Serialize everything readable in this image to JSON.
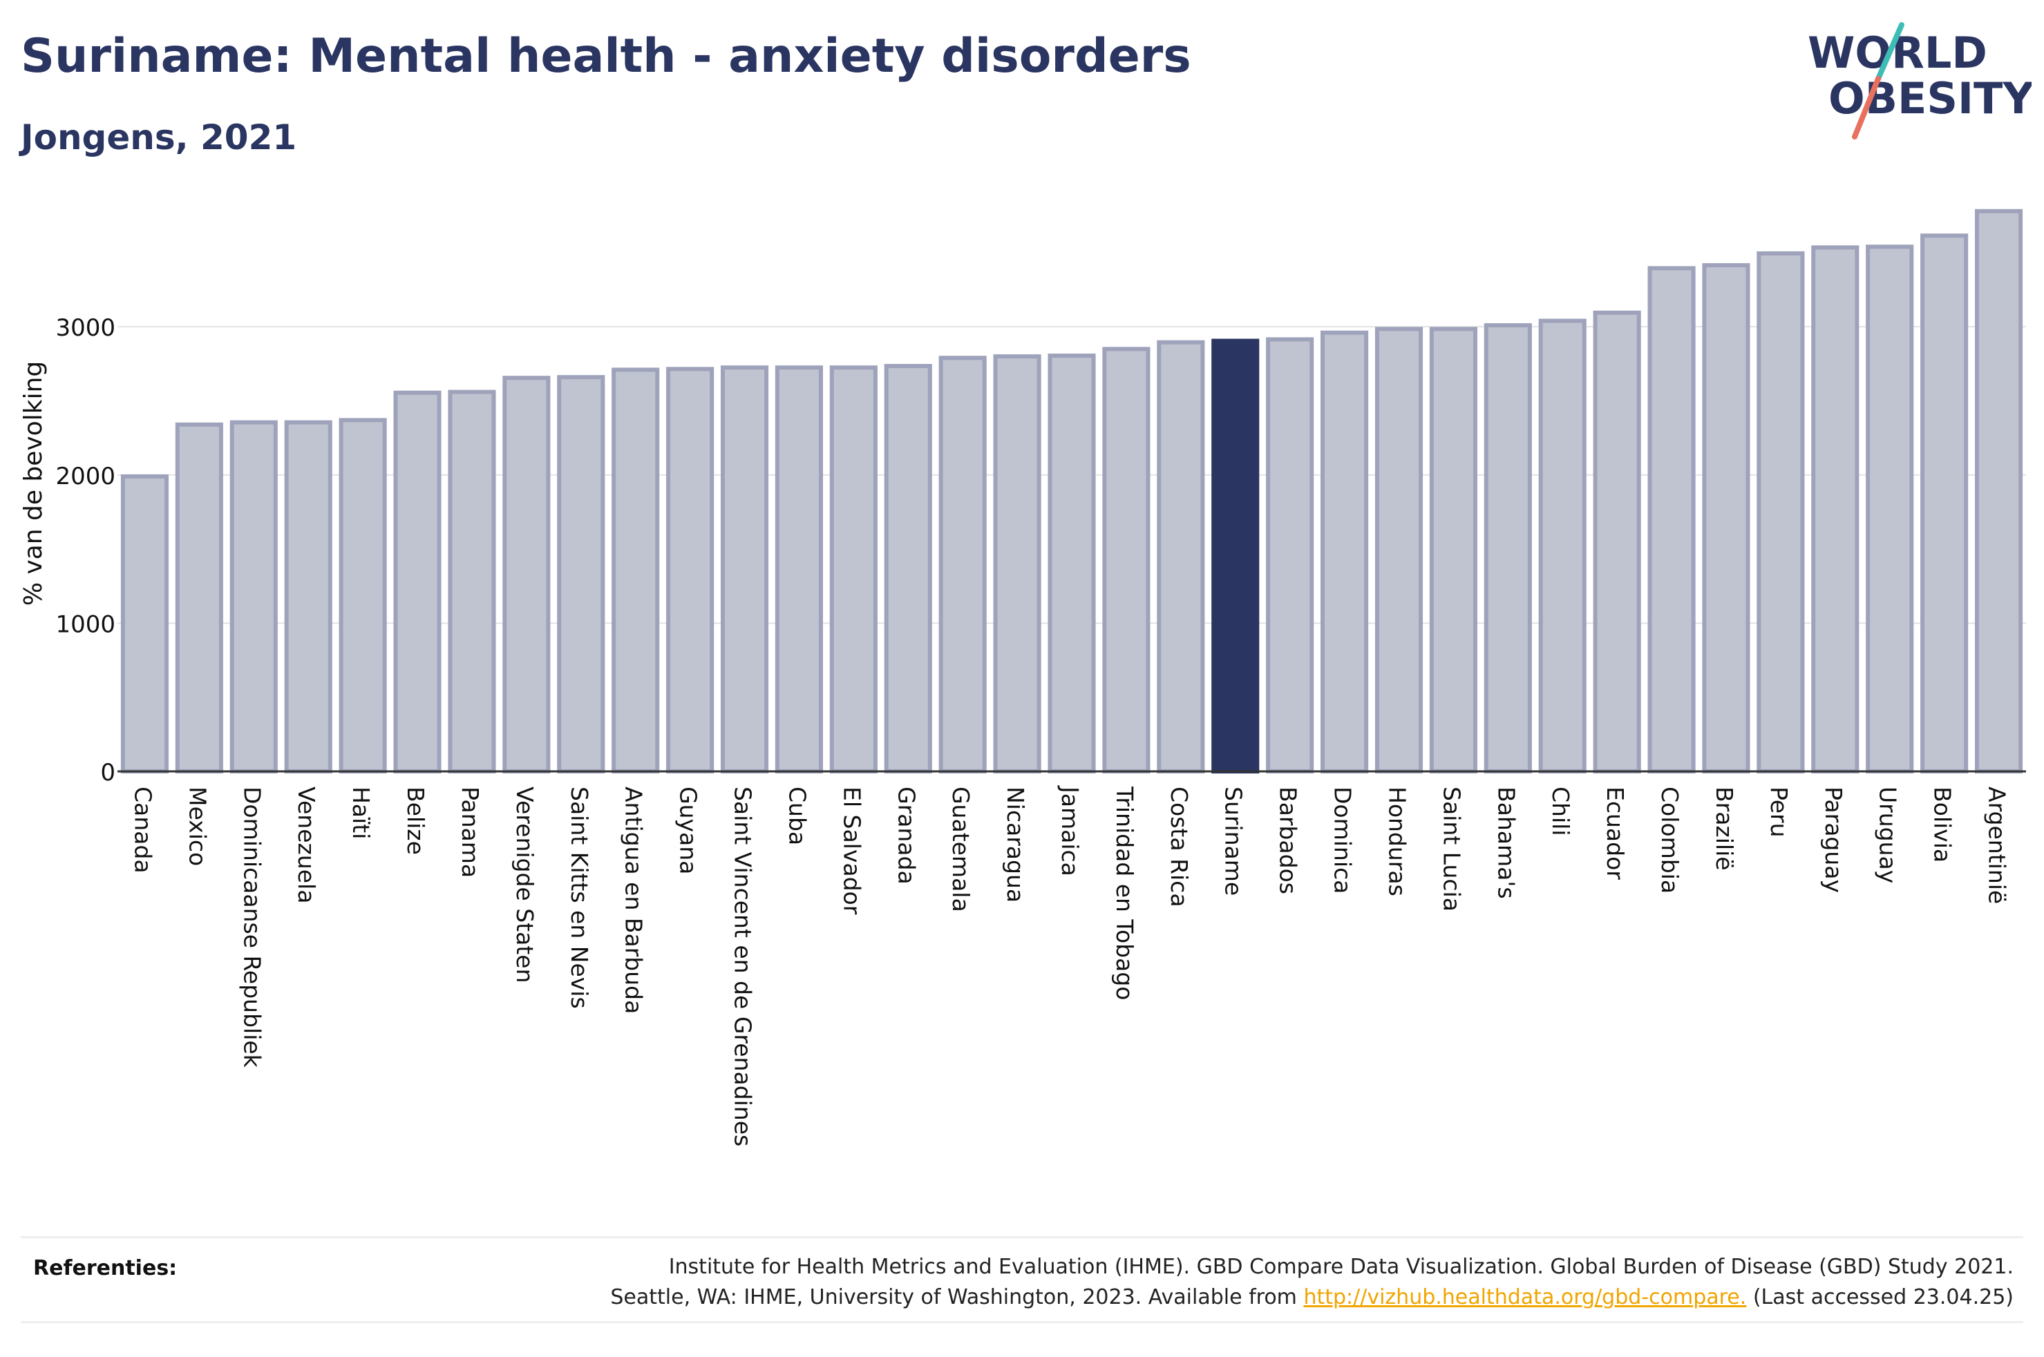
{
  "header": {
    "title": "Suriname: Mental health - anxiety disorders",
    "subtitle": "Jongens, 2021"
  },
  "logo": {
    "line1": "WORLD",
    "line2": "OBESITY"
  },
  "colors": {
    "highlight": "#2a3561",
    "bar_fill": "#c0c3d0",
    "bar_stroke": "#9ea3bb",
    "accent_teal": "#3dbdb5",
    "accent_red": "#e8705f",
    "link": "#f0a500"
  },
  "chart_data": {
    "type": "bar",
    "ylabel": "% van de bevolking",
    "xlabel": "",
    "ylim": [
      0,
      3900
    ],
    "yticks": [
      0,
      1000,
      2000,
      3000
    ],
    "grid": true,
    "highlight": "Suriname",
    "categories": [
      "Canada",
      "Mexico",
      "Dominicaanse Republiek",
      "Venezuela",
      "Haïti",
      "Belize",
      "Panama",
      "Verenigde Staten",
      "Saint Kitts en Nevis",
      "Antigua en Barbuda",
      "Guyana",
      "Saint Vincent en de Grenadines",
      "Cuba",
      "El Salvador",
      "Granada",
      "Guatemala",
      "Nicaragua",
      "Jamaica",
      "Trinidad en Tobago",
      "Costa Rica",
      "Suriname",
      "Barbados",
      "Dominica",
      "Honduras",
      "Saint Lucia",
      "Bahama's",
      "Chili",
      "Ecuador",
      "Colombia",
      "Brazilië",
      "Peru",
      "Paraguay",
      "Uruguay",
      "Bolivia",
      "Argentinië"
    ],
    "values": [
      1990,
      2340,
      2355,
      2355,
      2370,
      2555,
      2560,
      2655,
      2660,
      2710,
      2715,
      2725,
      2725,
      2725,
      2735,
      2790,
      2800,
      2805,
      2850,
      2895,
      2905,
      2915,
      2960,
      2985,
      2985,
      3010,
      3040,
      3095,
      3395,
      3415,
      3495,
      3535,
      3540,
      3615,
      3780
    ]
  },
  "references": {
    "label": "Referenties:",
    "line1": "Institute for Health Metrics and Evaluation (IHME). GBD Compare Data Visualization. Global Burden of Disease (GBD) Study 2021.",
    "line2_prefix": "Seattle, WA: IHME, University of Washington, 2023. Available from ",
    "link_text": "http://vizhub.healthdata.org/gbd-compare.",
    "line2_suffix": " (Last accessed 23.04.25)"
  }
}
